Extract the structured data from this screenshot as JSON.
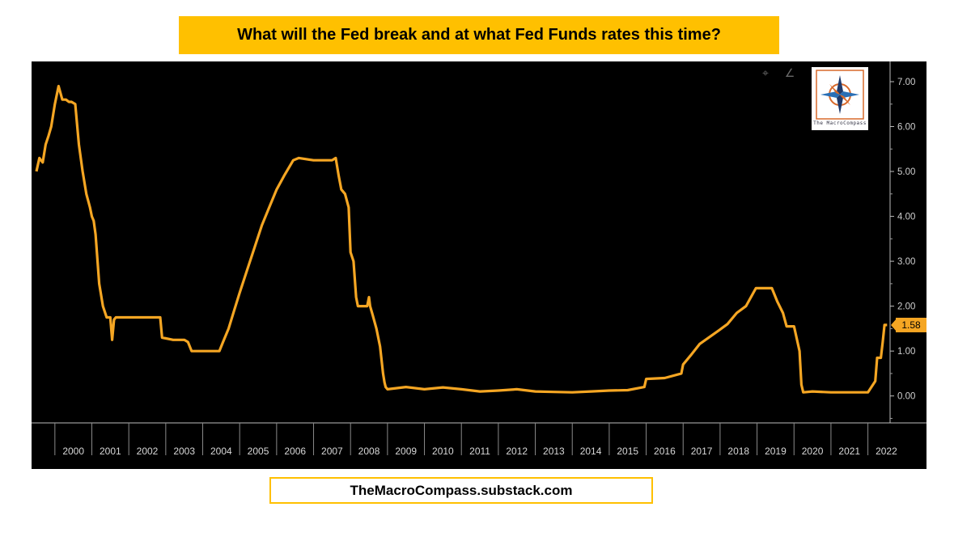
{
  "banner": {
    "title": "What will the Fed break and at what Fed Funds rates this time?"
  },
  "footer": {
    "source": "TheMacroCompass.substack.com"
  },
  "logo": {
    "name": "The MacroCompass",
    "text": "The MacroCompass"
  },
  "toolbar": {
    "crosshair_icon": "crosshair-icon",
    "draw_icon": "draw-line-icon"
  },
  "chart_data": {
    "type": "line",
    "title": "What will the Fed break and at what Fed Funds rates this time?",
    "xlabel": "",
    "ylabel": "",
    "ylim": [
      -0.6,
      7.45
    ],
    "xlim": [
      1999.5,
      2022.6
    ],
    "yticks": [
      0,
      1,
      2,
      3,
      4,
      5,
      6,
      7
    ],
    "ytick_labels": [
      "0.00",
      "1.00",
      "2.00",
      "3.00",
      "4.00",
      "5.00",
      "6.00",
      "7.00"
    ],
    "categories": [
      "2000",
      "2001",
      "2002",
      "2003",
      "2004",
      "2005",
      "2006",
      "2007",
      "2008",
      "2009",
      "2010",
      "2011",
      "2012",
      "2013",
      "2014",
      "2015",
      "2016",
      "2017",
      "2018",
      "2019",
      "2020",
      "2021",
      "2022"
    ],
    "last_value_label": "1.58",
    "line_color": "#F5A623",
    "series": [
      {
        "name": "Fed Funds Rate",
        "x": [
          1999.5,
          1999.58,
          1999.67,
          1999.75,
          1999.83,
          1999.9,
          2000.0,
          2000.1,
          2000.2,
          2000.3,
          2000.38,
          2000.45,
          2000.55,
          2000.65,
          2000.75,
          2000.85,
          2000.95,
          2001.0,
          2001.05,
          2001.1,
          2001.2,
          2001.3,
          2001.4,
          2001.5,
          2001.55,
          2001.6,
          2001.65,
          2001.7,
          2001.75,
          2001.8,
          2001.85,
          2001.95,
          2002.2,
          2002.5,
          2002.85,
          2002.9,
          2003.2,
          2003.5,
          2003.6,
          2003.7,
          2004.0,
          2004.3,
          2004.45,
          2004.55,
          2004.7,
          2004.85,
          2005.0,
          2005.2,
          2005.4,
          2005.6,
          2005.8,
          2006.0,
          2006.2,
          2006.45,
          2006.6,
          2007.0,
          2007.5,
          2007.6,
          2007.68,
          2007.75,
          2007.85,
          2007.95,
          2008.0,
          2008.08,
          2008.15,
          2008.2,
          2008.3,
          2008.45,
          2008.5,
          2008.53,
          2008.6,
          2008.7,
          2008.8,
          2008.88,
          2008.92,
          2008.95,
          2009.0,
          2009.5,
          2010.0,
          2010.5,
          2011.0,
          2011.5,
          2012.0,
          2012.5,
          2013.0,
          2013.5,
          2014.0,
          2014.5,
          2015.0,
          2015.5,
          2015.95,
          2016.0,
          2016.5,
          2016.95,
          2017.0,
          2017.2,
          2017.45,
          2017.95,
          2018.2,
          2018.45,
          2018.7,
          2018.97,
          2019.2,
          2019.4,
          2019.55,
          2019.7,
          2019.8,
          2019.9,
          2020.0,
          2020.15,
          2020.2,
          2020.25,
          2020.5,
          2021.0,
          2021.5,
          2022.0,
          2022.2,
          2022.25,
          2022.35,
          2022.4,
          2022.45,
          2022.52
        ],
        "values": [
          5.0,
          5.3,
          5.2,
          5.6,
          5.8,
          6.0,
          6.5,
          6.9,
          6.6,
          6.6,
          6.55,
          6.55,
          6.5,
          5.6,
          5.0,
          4.5,
          4.2,
          4.0,
          3.9,
          3.6,
          2.5,
          2.0,
          1.75,
          1.75,
          1.25,
          1.7,
          1.75,
          1.75,
          1.75,
          1.75,
          1.75,
          1.75,
          1.75,
          1.75,
          1.75,
          1.3,
          1.25,
          1.25,
          1.2,
          1.0,
          1.0,
          1.0,
          1.0,
          1.2,
          1.5,
          1.9,
          2.3,
          2.8,
          3.3,
          3.8,
          4.2,
          4.6,
          4.9,
          5.25,
          5.3,
          5.25,
          5.25,
          5.3,
          4.9,
          4.6,
          4.5,
          4.2,
          3.2,
          3.0,
          2.2,
          2.0,
          2.0,
          2.0,
          2.2,
          2.0,
          1.8,
          1.5,
          1.1,
          0.5,
          0.3,
          0.2,
          0.15,
          0.2,
          0.15,
          0.19,
          0.15,
          0.1,
          0.12,
          0.15,
          0.1,
          0.09,
          0.08,
          0.1,
          0.12,
          0.13,
          0.2,
          0.38,
          0.4,
          0.5,
          0.7,
          0.9,
          1.16,
          1.45,
          1.6,
          1.85,
          2.0,
          2.4,
          2.4,
          2.4,
          2.1,
          1.85,
          1.55,
          1.55,
          1.55,
          1.0,
          0.25,
          0.08,
          0.1,
          0.08,
          0.08,
          0.08,
          0.33,
          0.85,
          0.85,
          1.2,
          1.58,
          1.58
        ]
      }
    ]
  }
}
